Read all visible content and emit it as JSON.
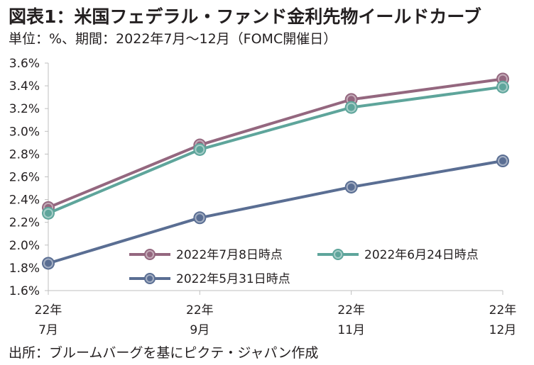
{
  "title": "図表1：米国フェデラル・ファンド金利先物イールドカーブ",
  "subtitle": "単位：%、期間：2022年7月～12月（FOMC開催日）",
  "source": "出所：ブルームバーグを基にピクテ・ジャパン作成",
  "chart_data": {
    "type": "line",
    "categories": [
      {
        "line1": "22年",
        "line2": "7月"
      },
      {
        "line1": "22年",
        "line2": "9月"
      },
      {
        "line1": "22年",
        "line2": "11月"
      },
      {
        "line1": "22年",
        "line2": "12月"
      }
    ],
    "ylim": [
      1.6,
      3.6
    ],
    "yticks": [
      "1.6%",
      "1.8%",
      "2.0%",
      "2.2%",
      "2.4%",
      "2.6%",
      "2.8%",
      "3.0%",
      "3.2%",
      "3.4%",
      "3.6%"
    ],
    "grid": false,
    "legend_position": "bottom-right inside plot",
    "series": [
      {
        "name": "2022年7月8日時点",
        "color": "#94677f",
        "values": [
          2.33,
          2.88,
          3.28,
          3.46
        ]
      },
      {
        "name": "2022年6月24日時点",
        "color": "#5ea59b",
        "values": [
          2.28,
          2.84,
          3.21,
          3.39
        ]
      },
      {
        "name": "2022年5月31日時点",
        "color": "#5a6e93",
        "values": [
          1.84,
          2.24,
          2.51,
          2.74
        ]
      }
    ]
  }
}
